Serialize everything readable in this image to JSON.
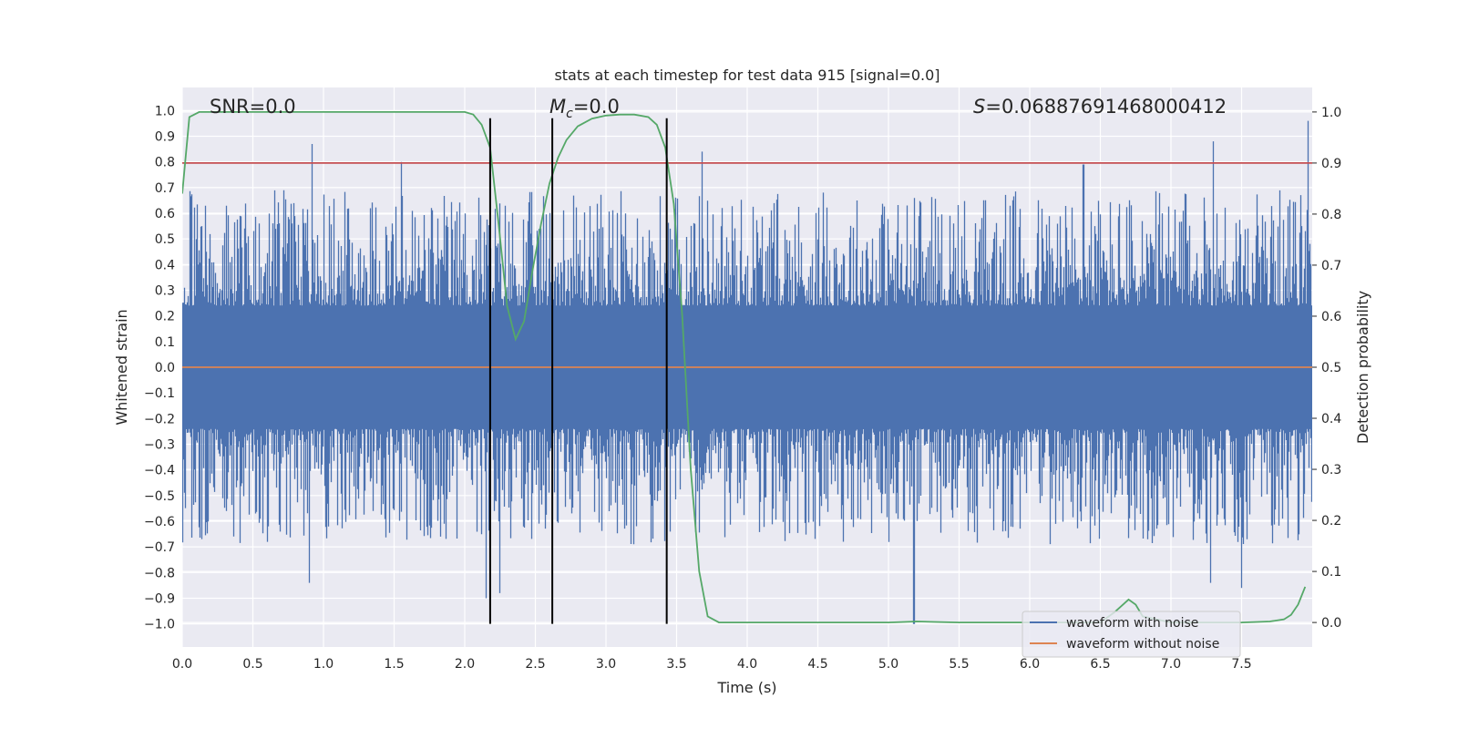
{
  "chart_data": {
    "type": "line",
    "title": "stats at each timestep for test data 915 [signal=0.0]",
    "xlabel": "Time (s)",
    "ylabel": "Whitened strain",
    "y2label": "Detection probability",
    "xlim": [
      0.0,
      8.0
    ],
    "ylim": [
      -1.09,
      1.09
    ],
    "y2lim": [
      -0.048,
      1.048
    ],
    "xticks": [
      0.0,
      0.5,
      1.0,
      1.5,
      2.0,
      2.5,
      3.0,
      3.5,
      4.0,
      4.5,
      5.0,
      5.5,
      6.0,
      6.5,
      7.0,
      7.5
    ],
    "xtick_labels": [
      "0.0",
      "0.5",
      "1.0",
      "1.5",
      "2.0",
      "2.5",
      "3.0",
      "3.5",
      "4.0",
      "4.5",
      "5.0",
      "5.5",
      "6.0",
      "6.5",
      "7.0",
      "7.5"
    ],
    "yticks": [
      1.0,
      0.9,
      0.8,
      0.7,
      0.6,
      0.5,
      0.4,
      0.3,
      0.2,
      0.1,
      0.0,
      -0.1,
      -0.2,
      -0.3,
      -0.4,
      -0.5,
      -0.6,
      -0.7,
      -0.8,
      -0.9,
      -1.0
    ],
    "ytick_labels": [
      "1.0",
      "0.9",
      "0.8",
      "0.7",
      "0.6",
      "0.5",
      "0.4",
      "0.3",
      "0.2",
      "0.1",
      "0.0",
      "−0.1",
      "−0.2",
      "−0.3",
      "−0.4",
      "−0.5",
      "−0.6",
      "−0.7",
      "−0.8",
      "−0.9",
      "−1.0"
    ],
    "y2ticks": [
      1.0,
      0.9,
      0.8,
      0.7,
      0.6,
      0.5,
      0.4,
      0.3,
      0.2,
      0.1,
      0.0
    ],
    "y2tick_labels": [
      "1.0",
      "0.9",
      "0.8",
      "0.7",
      "0.6",
      "0.5",
      "0.4",
      "0.3",
      "0.2",
      "0.1",
      "0.0"
    ],
    "grid": true,
    "annotations": {
      "snr": "SNR=0.0",
      "mc_symbol": "M",
      "mc_sub": "c",
      "mc_value": "=0.0",
      "s_symbol": "S",
      "s_value": "=0.06887691468000412"
    },
    "legend": {
      "position": "lower-right",
      "entries": [
        {
          "name": "waveform with noise",
          "color": "#4c72b0"
        },
        {
          "name": "waveform without noise",
          "color": "#dd8452"
        }
      ]
    },
    "series": [
      {
        "name": "waveform with noise",
        "axis": "left",
        "color": "#4c72b0",
        "style": "dense noise band",
        "upper_envelope_typical": 0.45,
        "lower_envelope_typical": -0.45,
        "spikes": [
          {
            "t": 0.92,
            "v": 0.87
          },
          {
            "t": 1.55,
            "v": 0.8
          },
          {
            "t": 3.68,
            "v": 0.84
          },
          {
            "t": 6.38,
            "v": 0.79
          },
          {
            "t": 7.3,
            "v": 0.88
          },
          {
            "t": 7.97,
            "v": 0.96
          },
          {
            "t": 2.15,
            "v": -0.9
          },
          {
            "t": 2.25,
            "v": -0.88
          },
          {
            "t": 5.18,
            "v": -1.0
          },
          {
            "t": 0.9,
            "v": -0.84
          },
          {
            "t": 7.5,
            "v": -0.86
          },
          {
            "t": 7.28,
            "v": -0.84
          }
        ]
      },
      {
        "name": "waveform without noise",
        "axis": "left",
        "color": "#dd8452",
        "x": [
          0.0,
          8.0
        ],
        "values": [
          0.0,
          0.0
        ]
      },
      {
        "name": "detection probability",
        "axis": "right",
        "color": "#55a868",
        "x": [
          0.0,
          0.05,
          0.12,
          0.3,
          1.0,
          1.5,
          2.0,
          2.06,
          2.12,
          2.18,
          2.24,
          2.3,
          2.36,
          2.42,
          2.48,
          2.54,
          2.6,
          2.66,
          2.72,
          2.8,
          2.9,
          3.0,
          3.1,
          3.2,
          3.3,
          3.36,
          3.42,
          3.48,
          3.54,
          3.6,
          3.66,
          3.72,
          3.8,
          4.0,
          5.0,
          5.2,
          5.5,
          6.0,
          6.5,
          6.6,
          6.7,
          6.75,
          6.8,
          7.0,
          7.5,
          7.7,
          7.8,
          7.85,
          7.9,
          7.95
        ],
        "values": [
          0.84,
          0.99,
          1.0,
          1.0,
          1.0,
          1.0,
          1.0,
          0.995,
          0.975,
          0.93,
          0.78,
          0.62,
          0.555,
          0.59,
          0.69,
          0.78,
          0.86,
          0.91,
          0.945,
          0.972,
          0.987,
          0.993,
          0.995,
          0.995,
          0.99,
          0.975,
          0.93,
          0.82,
          0.6,
          0.3,
          0.1,
          0.012,
          0.0,
          0.0,
          0.0,
          0.002,
          0.0,
          0.0,
          0.0,
          0.02,
          0.045,
          0.035,
          0.012,
          0.0,
          0.0,
          0.002,
          0.006,
          0.015,
          0.035,
          0.07
        ]
      },
      {
        "name": "threshold",
        "axis": "right",
        "color": "#c44e52",
        "x": [
          0.0,
          8.0
        ],
        "values": [
          0.9,
          0.9
        ]
      }
    ],
    "vertical_markers": [
      2.18,
      2.62,
      3.43
    ],
    "vertical_marker_ylim": [
      -1.0,
      0.97
    ],
    "vertical_marker_color": "#000000"
  }
}
